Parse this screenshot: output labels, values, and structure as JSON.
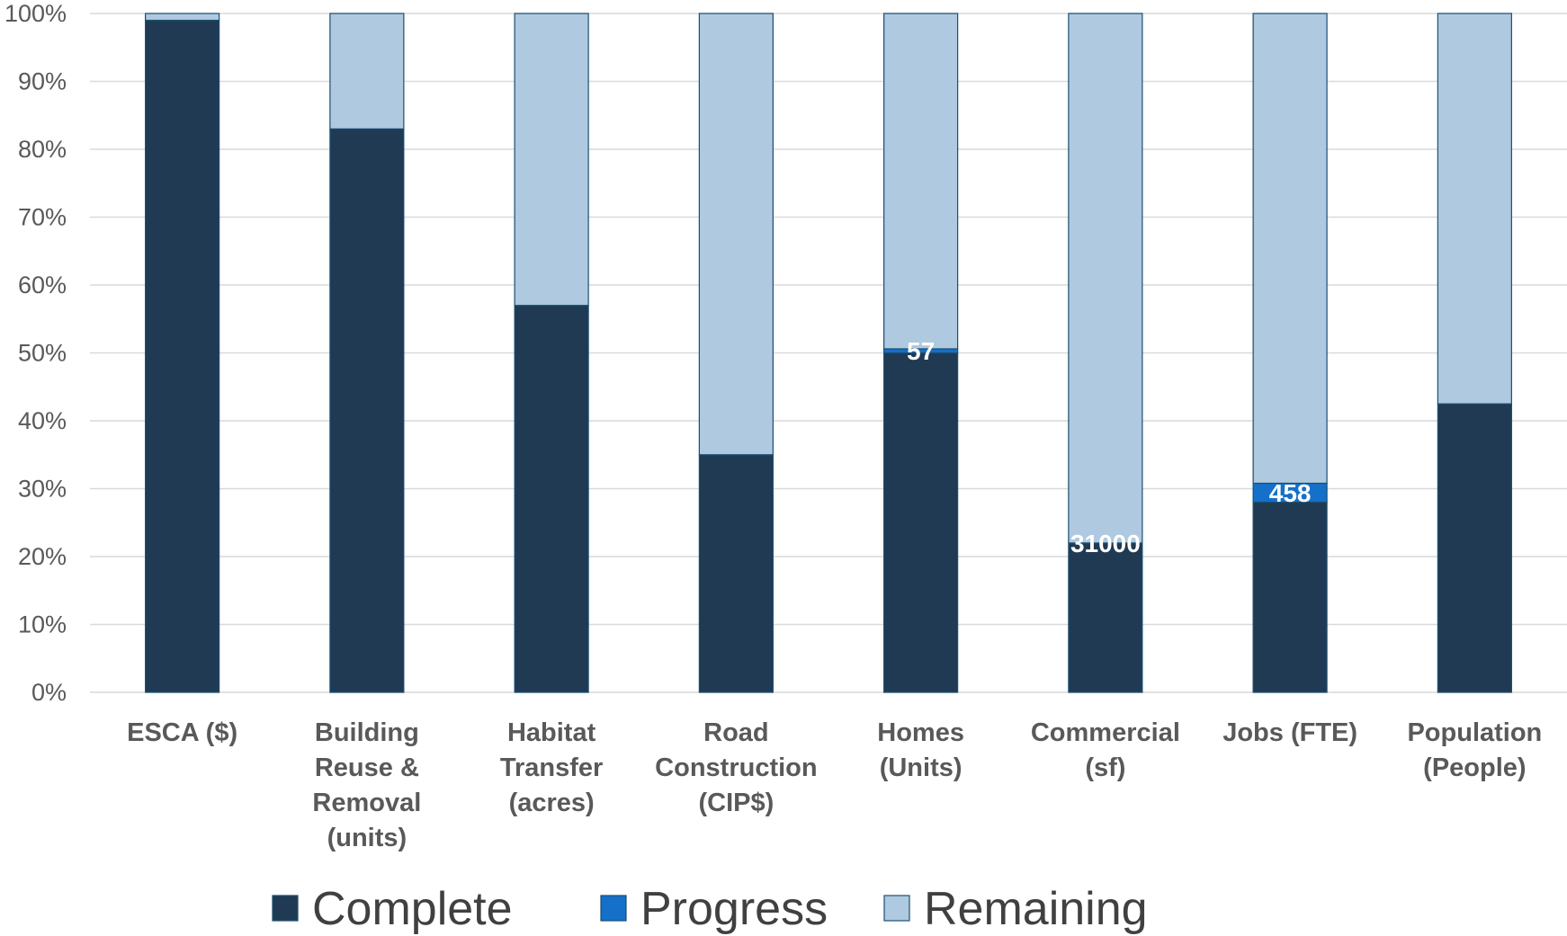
{
  "chart_data": {
    "type": "bar",
    "stacked": true,
    "percent": true,
    "categories": [
      [
        "ESCA ($)"
      ],
      [
        "Building",
        "Reuse &",
        "Removal",
        "(units)"
      ],
      [
        "Habitat",
        "Transfer",
        "(acres)"
      ],
      [
        "Road",
        "Construction",
        "(CIP$)"
      ],
      [
        "Homes",
        "(Units)"
      ],
      [
        "Commercial",
        "(sf)"
      ],
      [
        "Jobs (FTE)"
      ],
      [
        "Population",
        "(People)"
      ]
    ],
    "series": [
      {
        "name": "Complete",
        "color": "#1f3a52",
        "values": [
          99,
          83,
          57,
          35,
          50,
          22,
          28,
          42.5
        ]
      },
      {
        "name": "Progress",
        "color": "#1470c8",
        "values": [
          0,
          0,
          0,
          0,
          0.6,
          0,
          2.8,
          0
        ]
      },
      {
        "name": "Remaining",
        "color": "#afc9e0",
        "values": [
          1,
          17,
          43,
          65,
          49.4,
          78,
          69.2,
          57.5
        ]
      }
    ],
    "data_labels": [
      {
        "category_index": 4,
        "text": "57"
      },
      {
        "category_index": 5,
        "text": "31000"
      },
      {
        "category_index": 6,
        "text": "458"
      }
    ],
    "y_ticks": [
      "0%",
      "10%",
      "20%",
      "30%",
      "40%",
      "50%",
      "60%",
      "70%",
      "80%",
      "90%",
      "100%"
    ],
    "ylim": [
      0,
      100
    ],
    "title": "",
    "xlabel": "",
    "ylabel": "",
    "grid": true,
    "legend_position": "bottom"
  }
}
